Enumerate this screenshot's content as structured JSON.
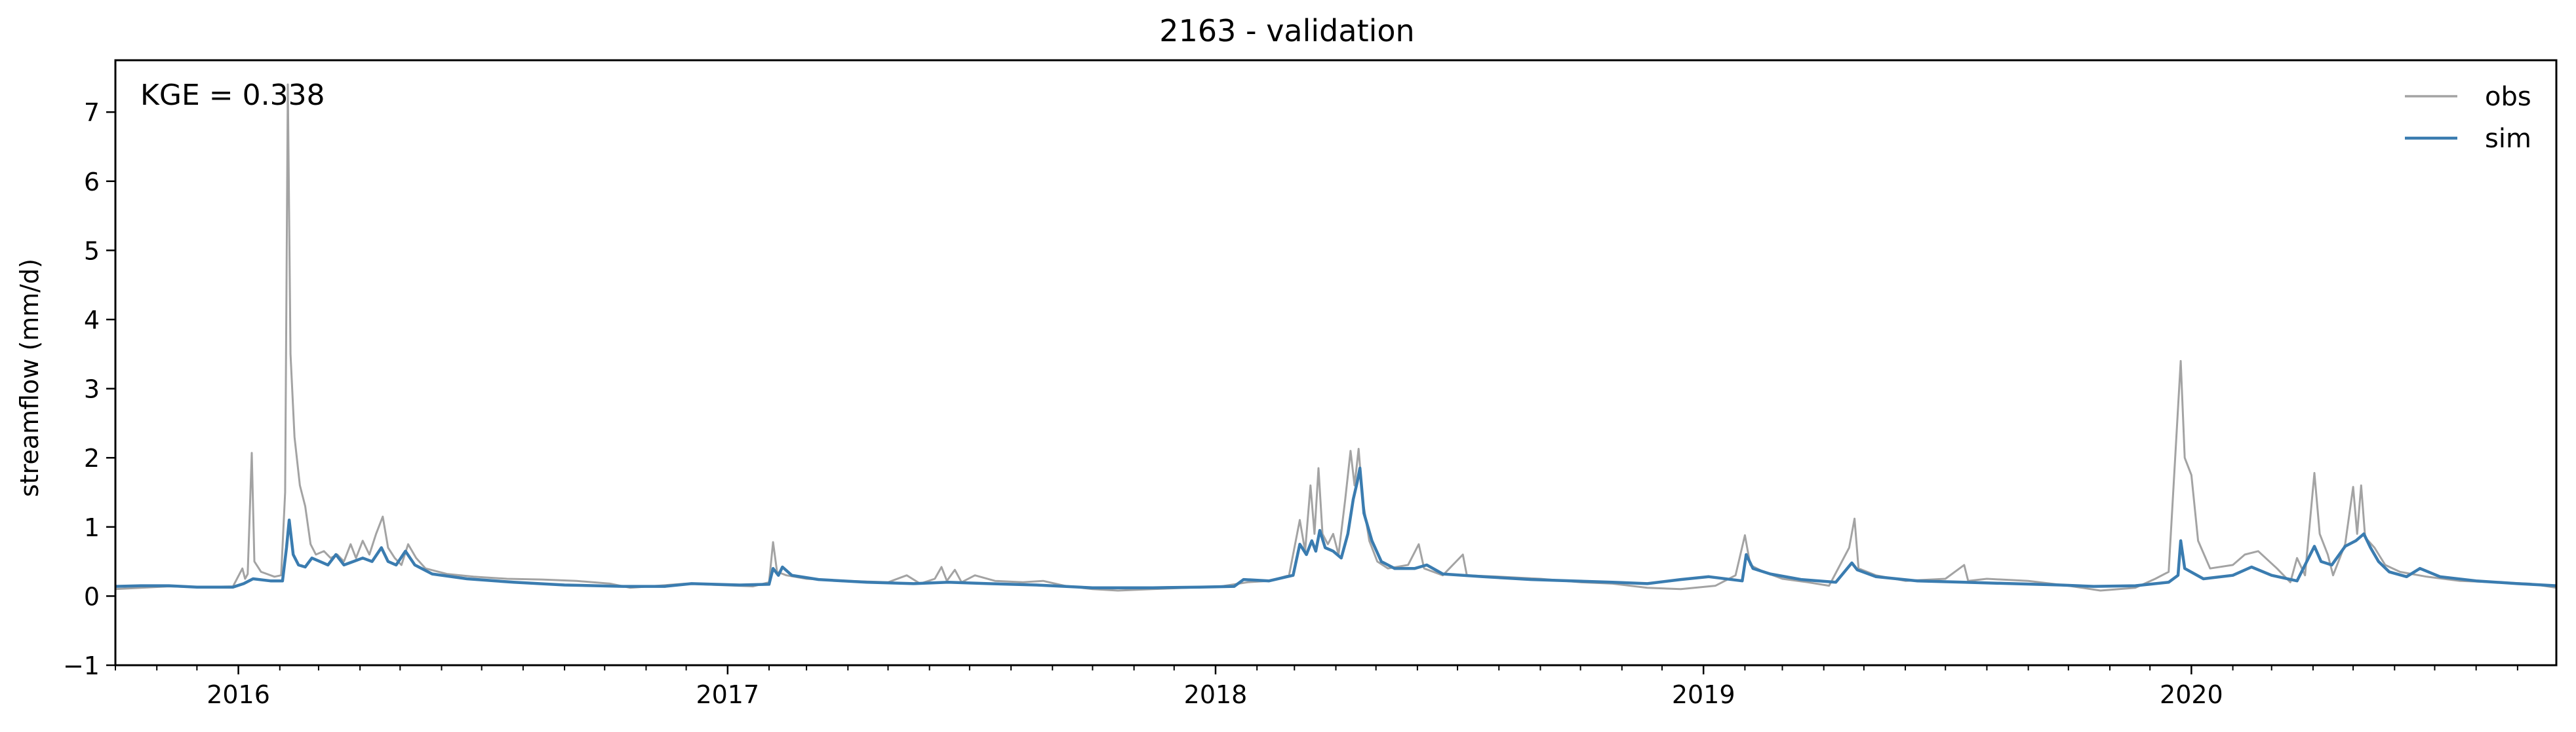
{
  "chart_data": {
    "type": "line",
    "title": "2163 - validation",
    "xlabel": "",
    "ylabel": "streamflow (mm/d)",
    "annotation": "KGE = 0.338",
    "ylim": [
      -1,
      7.75
    ],
    "xlim": [
      "2015-10-01",
      "2020-09-30"
    ],
    "yticks": [
      -1,
      0,
      1,
      2,
      3,
      4,
      5,
      6,
      7
    ],
    "xtick_labels": [
      "2016",
      "2017",
      "2018",
      "2019",
      "2020"
    ],
    "grid": false,
    "legend_position": "top-right",
    "series": [
      {
        "name": "obs",
        "color": "#a3a3a3",
        "points": [
          [
            "2015-10-01",
            0.1
          ],
          [
            "2015-10-20",
            0.12
          ],
          [
            "2015-11-10",
            0.14
          ],
          [
            "2015-12-01",
            0.13
          ],
          [
            "2015-12-28",
            0.14
          ],
          [
            "2016-01-04",
            0.4
          ],
          [
            "2016-01-06",
            0.25
          ],
          [
            "2016-01-08",
            0.32
          ],
          [
            "2016-01-11",
            2.07
          ],
          [
            "2016-01-13",
            0.5
          ],
          [
            "2016-01-18",
            0.35
          ],
          [
            "2016-01-28",
            0.28
          ],
          [
            "2016-02-02",
            0.3
          ],
          [
            "2016-02-05",
            1.5
          ],
          [
            "2016-02-07",
            7.4
          ],
          [
            "2016-02-09",
            3.5
          ],
          [
            "2016-02-12",
            2.3
          ],
          [
            "2016-02-16",
            1.6
          ],
          [
            "2016-02-20",
            1.3
          ],
          [
            "2016-02-24",
            0.75
          ],
          [
            "2016-02-28",
            0.6
          ],
          [
            "2016-03-05",
            0.65
          ],
          [
            "2016-03-10",
            0.55
          ],
          [
            "2016-03-15",
            0.6
          ],
          [
            "2016-03-20",
            0.5
          ],
          [
            "2016-03-25",
            0.75
          ],
          [
            "2016-03-29",
            0.55
          ],
          [
            "2016-04-03",
            0.8
          ],
          [
            "2016-04-08",
            0.6
          ],
          [
            "2016-04-13",
            0.9
          ],
          [
            "2016-04-18",
            1.15
          ],
          [
            "2016-04-22",
            0.7
          ],
          [
            "2016-04-27",
            0.55
          ],
          [
            "2016-05-02",
            0.45
          ],
          [
            "2016-05-07",
            0.75
          ],
          [
            "2016-05-13",
            0.55
          ],
          [
            "2016-05-20",
            0.4
          ],
          [
            "2016-06-05",
            0.32
          ],
          [
            "2016-06-25",
            0.28
          ],
          [
            "2016-07-20",
            0.25
          ],
          [
            "2016-08-15",
            0.24
          ],
          [
            "2016-09-10",
            0.22
          ],
          [
            "2016-10-05",
            0.18
          ],
          [
            "2016-10-20",
            0.12
          ],
          [
            "2016-11-10",
            0.15
          ],
          [
            "2016-12-01",
            0.18
          ],
          [
            "2016-12-25",
            0.16
          ],
          [
            "2017-01-20",
            0.14
          ],
          [
            "2017-02-01",
            0.2
          ],
          [
            "2017-02-04",
            0.78
          ],
          [
            "2017-02-07",
            0.35
          ],
          [
            "2017-02-14",
            0.3
          ],
          [
            "2017-03-01",
            0.25
          ],
          [
            "2017-04-01",
            0.22
          ],
          [
            "2017-05-01",
            0.2
          ],
          [
            "2017-05-15",
            0.3
          ],
          [
            "2017-05-25",
            0.18
          ],
          [
            "2017-06-05",
            0.25
          ],
          [
            "2017-06-10",
            0.42
          ],
          [
            "2017-06-14",
            0.22
          ],
          [
            "2017-06-20",
            0.38
          ],
          [
            "2017-06-25",
            0.2
          ],
          [
            "2017-07-05",
            0.3
          ],
          [
            "2017-07-20",
            0.22
          ],
          [
            "2017-08-10",
            0.2
          ],
          [
            "2017-08-25",
            0.22
          ],
          [
            "2017-09-10",
            0.15
          ],
          [
            "2017-10-01",
            0.1
          ],
          [
            "2017-10-20",
            0.08
          ],
          [
            "2017-11-15",
            0.1
          ],
          [
            "2017-12-10",
            0.12
          ],
          [
            "2018-01-05",
            0.14
          ],
          [
            "2018-01-25",
            0.2
          ],
          [
            "2018-02-10",
            0.22
          ],
          [
            "2018-02-25",
            0.3
          ],
          [
            "2018-03-05",
            1.1
          ],
          [
            "2018-03-09",
            0.65
          ],
          [
            "2018-03-13",
            1.6
          ],
          [
            "2018-03-16",
            0.9
          ],
          [
            "2018-03-19",
            1.85
          ],
          [
            "2018-03-22",
            0.9
          ],
          [
            "2018-03-26",
            0.75
          ],
          [
            "2018-03-30",
            0.9
          ],
          [
            "2018-04-03",
            0.6
          ],
          [
            "2018-04-08",
            1.4
          ],
          [
            "2018-04-12",
            2.1
          ],
          [
            "2018-04-15",
            1.6
          ],
          [
            "2018-04-18",
            2.13
          ],
          [
            "2018-04-21",
            1.4
          ],
          [
            "2018-04-26",
            0.8
          ],
          [
            "2018-05-02",
            0.5
          ],
          [
            "2018-05-10",
            0.4
          ],
          [
            "2018-05-25",
            0.45
          ],
          [
            "2018-06-02",
            0.75
          ],
          [
            "2018-06-06",
            0.4
          ],
          [
            "2018-06-20",
            0.3
          ],
          [
            "2018-07-05",
            0.6
          ],
          [
            "2018-07-08",
            0.3
          ],
          [
            "2018-08-01",
            0.28
          ],
          [
            "2018-09-01",
            0.25
          ],
          [
            "2018-10-01",
            0.2
          ],
          [
            "2018-10-25",
            0.18
          ],
          [
            "2018-11-20",
            0.12
          ],
          [
            "2018-12-15",
            0.1
          ],
          [
            "2019-01-10",
            0.15
          ],
          [
            "2019-01-25",
            0.3
          ],
          [
            "2019-02-01",
            0.88
          ],
          [
            "2019-02-05",
            0.45
          ],
          [
            "2019-02-15",
            0.35
          ],
          [
            "2019-03-01",
            0.25
          ],
          [
            "2019-03-20",
            0.2
          ],
          [
            "2019-04-05",
            0.15
          ],
          [
            "2019-04-20",
            0.7
          ],
          [
            "2019-04-24",
            1.12
          ],
          [
            "2019-04-27",
            0.4
          ],
          [
            "2019-05-10",
            0.3
          ],
          [
            "2019-06-01",
            0.22
          ],
          [
            "2019-07-01",
            0.25
          ],
          [
            "2019-07-15",
            0.45
          ],
          [
            "2019-07-18",
            0.22
          ],
          [
            "2019-08-01",
            0.25
          ],
          [
            "2019-09-01",
            0.22
          ],
          [
            "2019-10-01",
            0.15
          ],
          [
            "2019-10-25",
            0.08
          ],
          [
            "2019-11-20",
            0.12
          ],
          [
            "2019-12-05",
            0.25
          ],
          [
            "2019-12-15",
            0.35
          ],
          [
            "2019-12-24",
            3.4
          ],
          [
            "2019-12-27",
            2.0
          ],
          [
            "2020-01-01",
            1.75
          ],
          [
            "2020-01-06",
            0.8
          ],
          [
            "2020-01-15",
            0.4
          ],
          [
            "2020-02-01",
            0.45
          ],
          [
            "2020-02-10",
            0.6
          ],
          [
            "2020-02-20",
            0.65
          ],
          [
            "2020-03-05",
            0.4
          ],
          [
            "2020-03-15",
            0.2
          ],
          [
            "2020-03-20",
            0.55
          ],
          [
            "2020-03-26",
            0.3
          ],
          [
            "2020-04-02",
            1.78
          ],
          [
            "2020-04-06",
            0.9
          ],
          [
            "2020-04-12",
            0.6
          ],
          [
            "2020-04-16",
            0.3
          ],
          [
            "2020-04-25",
            0.75
          ],
          [
            "2020-05-01",
            1.58
          ],
          [
            "2020-05-04",
            0.9
          ],
          [
            "2020-05-07",
            1.6
          ],
          [
            "2020-05-10",
            0.85
          ],
          [
            "2020-05-17",
            0.7
          ],
          [
            "2020-05-25",
            0.45
          ],
          [
            "2020-06-05",
            0.35
          ],
          [
            "2020-06-25",
            0.28
          ],
          [
            "2020-07-20",
            0.22
          ],
          [
            "2020-08-15",
            0.2
          ],
          [
            "2020-09-10",
            0.18
          ],
          [
            "2020-09-30",
            0.12
          ]
        ]
      },
      {
        "name": "sim",
        "color": "#3a7cb0",
        "points": [
          [
            "2015-10-01",
            0.14
          ],
          [
            "2015-10-20",
            0.15
          ],
          [
            "2015-11-10",
            0.15
          ],
          [
            "2015-12-01",
            0.13
          ],
          [
            "2015-12-28",
            0.13
          ],
          [
            "2016-01-05",
            0.18
          ],
          [
            "2016-01-12",
            0.25
          ],
          [
            "2016-01-25",
            0.22
          ],
          [
            "2016-02-03",
            0.22
          ],
          [
            "2016-02-06",
            0.7
          ],
          [
            "2016-02-08",
            1.1
          ],
          [
            "2016-02-11",
            0.6
          ],
          [
            "2016-02-15",
            0.45
          ],
          [
            "2016-02-20",
            0.42
          ],
          [
            "2016-02-25",
            0.55
          ],
          [
            "2016-03-02",
            0.5
          ],
          [
            "2016-03-08",
            0.45
          ],
          [
            "2016-03-14",
            0.6
          ],
          [
            "2016-03-20",
            0.45
          ],
          [
            "2016-03-27",
            0.5
          ],
          [
            "2016-04-03",
            0.55
          ],
          [
            "2016-04-10",
            0.5
          ],
          [
            "2016-04-17",
            0.7
          ],
          [
            "2016-04-22",
            0.5
          ],
          [
            "2016-04-28",
            0.45
          ],
          [
            "2016-05-05",
            0.65
          ],
          [
            "2016-05-12",
            0.45
          ],
          [
            "2016-05-25",
            0.32
          ],
          [
            "2016-06-20",
            0.25
          ],
          [
            "2016-07-25",
            0.2
          ],
          [
            "2016-09-01",
            0.16
          ],
          [
            "2016-10-15",
            0.14
          ],
          [
            "2016-11-15",
            0.14
          ],
          [
            "2016-12-05",
            0.18
          ],
          [
            "2017-01-10",
            0.16
          ],
          [
            "2017-02-01",
            0.17
          ],
          [
            "2017-02-04",
            0.4
          ],
          [
            "2017-02-08",
            0.3
          ],
          [
            "2017-02-11",
            0.42
          ],
          [
            "2017-02-18",
            0.3
          ],
          [
            "2017-03-10",
            0.24
          ],
          [
            "2017-04-15",
            0.2
          ],
          [
            "2017-05-20",
            0.18
          ],
          [
            "2017-06-15",
            0.2
          ],
          [
            "2017-07-15",
            0.18
          ],
          [
            "2017-08-20",
            0.16
          ],
          [
            "2017-10-01",
            0.12
          ],
          [
            "2017-11-15",
            0.12
          ],
          [
            "2017-12-20",
            0.13
          ],
          [
            "2018-01-15",
            0.14
          ],
          [
            "2018-01-22",
            0.24
          ],
          [
            "2018-02-10",
            0.22
          ],
          [
            "2018-02-28",
            0.3
          ],
          [
            "2018-03-05",
            0.75
          ],
          [
            "2018-03-10",
            0.6
          ],
          [
            "2018-03-14",
            0.8
          ],
          [
            "2018-03-17",
            0.65
          ],
          [
            "2018-03-20",
            0.95
          ],
          [
            "2018-03-24",
            0.7
          ],
          [
            "2018-03-30",
            0.65
          ],
          [
            "2018-04-05",
            0.55
          ],
          [
            "2018-04-10",
            0.9
          ],
          [
            "2018-04-14",
            1.4
          ],
          [
            "2018-04-17",
            1.65
          ],
          [
            "2018-04-19",
            1.85
          ],
          [
            "2018-04-22",
            1.2
          ],
          [
            "2018-04-28",
            0.8
          ],
          [
            "2018-05-05",
            0.5
          ],
          [
            "2018-05-15",
            0.4
          ],
          [
            "2018-05-30",
            0.4
          ],
          [
            "2018-06-08",
            0.45
          ],
          [
            "2018-06-20",
            0.32
          ],
          [
            "2018-07-20",
            0.28
          ],
          [
            "2018-08-25",
            0.24
          ],
          [
            "2018-09-25",
            0.22
          ],
          [
            "2018-10-25",
            0.2
          ],
          [
            "2018-11-20",
            0.18
          ],
          [
            "2018-12-15",
            0.24
          ],
          [
            "2019-01-05",
            0.28
          ],
          [
            "2019-01-30",
            0.22
          ],
          [
            "2019-02-02",
            0.6
          ],
          [
            "2019-02-07",
            0.4
          ],
          [
            "2019-02-20",
            0.32
          ],
          [
            "2019-03-15",
            0.24
          ],
          [
            "2019-04-10",
            0.2
          ],
          [
            "2019-04-22",
            0.48
          ],
          [
            "2019-04-26",
            0.38
          ],
          [
            "2019-05-10",
            0.28
          ],
          [
            "2019-06-10",
            0.22
          ],
          [
            "2019-07-15",
            0.2
          ],
          [
            "2019-08-20",
            0.18
          ],
          [
            "2019-09-25",
            0.16
          ],
          [
            "2019-10-20",
            0.14
          ],
          [
            "2019-11-20",
            0.15
          ],
          [
            "2019-12-15",
            0.2
          ],
          [
            "2019-12-22",
            0.3
          ],
          [
            "2019-12-24",
            0.8
          ],
          [
            "2019-12-27",
            0.4
          ],
          [
            "2020-01-10",
            0.25
          ],
          [
            "2020-02-01",
            0.3
          ],
          [
            "2020-02-15",
            0.42
          ],
          [
            "2020-03-01",
            0.3
          ],
          [
            "2020-03-20",
            0.22
          ],
          [
            "2020-04-02",
            0.72
          ],
          [
            "2020-04-07",
            0.5
          ],
          [
            "2020-04-15",
            0.45
          ],
          [
            "2020-04-25",
            0.72
          ],
          [
            "2020-05-03",
            0.8
          ],
          [
            "2020-05-09",
            0.9
          ],
          [
            "2020-05-14",
            0.7
          ],
          [
            "2020-05-20",
            0.5
          ],
          [
            "2020-05-28",
            0.35
          ],
          [
            "2020-06-10",
            0.28
          ],
          [
            "2020-06-20",
            0.4
          ],
          [
            "2020-07-05",
            0.28
          ],
          [
            "2020-08-01",
            0.22
          ],
          [
            "2020-09-01",
            0.18
          ],
          [
            "2020-09-30",
            0.15
          ]
        ]
      }
    ]
  }
}
